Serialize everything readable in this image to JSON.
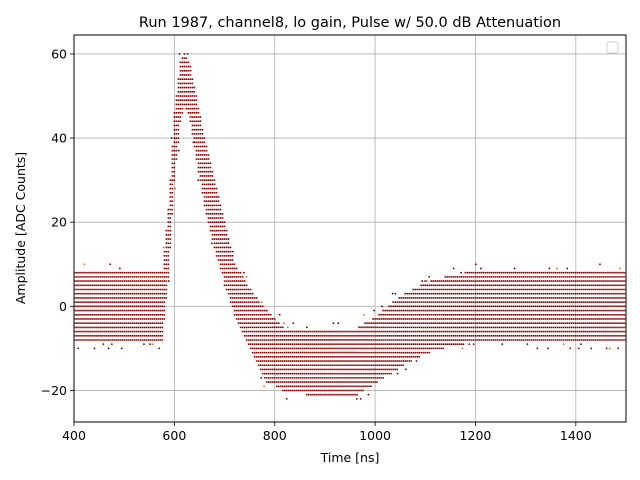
{
  "chart_data": {
    "type": "scatter",
    "title": "Run 1987, channel8, lo gain, Pulse w/ 50.0 dB Attenuation",
    "xlabel": "Time [ns]",
    "ylabel": "Amplitude [ADC Counts]",
    "xlim": [
      400,
      1500
    ],
    "ylim": [
      -27.5,
      64.5
    ],
    "x_ticks": [
      400,
      600,
      800,
      1000,
      1200,
      1400
    ],
    "y_ticks": [
      -20,
      0,
      20,
      40,
      60
    ],
    "grid": true,
    "legend": {
      "placement": "top-right",
      "entries": []
    },
    "colors": {
      "points": "#8b0000",
      "spread": "#5a0000",
      "stray": "#d2691e",
      "grid": "#b0b0b0"
    },
    "sample_spacing_ns": 4,
    "adc_step": 1,
    "series": [
      {
        "kind": "waveform-envelope",
        "points": [
          {
            "x": 400,
            "min": -8,
            "max": 8
          },
          {
            "x": 576,
            "min": -8,
            "max": 8
          },
          {
            "x": 590,
            "min": 10,
            "max": 26
          },
          {
            "x": 600,
            "min": 30,
            "max": 46
          },
          {
            "x": 612,
            "min": 44,
            "max": 58
          },
          {
            "x": 620,
            "min": 48,
            "max": 60
          },
          {
            "x": 630,
            "min": 45,
            "max": 58
          },
          {
            "x": 640,
            "min": 38,
            "max": 52
          },
          {
            "x": 660,
            "min": 24,
            "max": 40
          },
          {
            "x": 680,
            "min": 14,
            "max": 30
          },
          {
            "x": 700,
            "min": 6,
            "max": 20
          },
          {
            "x": 720,
            "min": -2,
            "max": 10
          },
          {
            "x": 750,
            "min": -10,
            "max": 4
          },
          {
            "x": 780,
            "min": -17,
            "max": -1
          },
          {
            "x": 820,
            "min": -20,
            "max": -6
          },
          {
            "x": 900,
            "min": -21,
            "max": -6
          },
          {
            "x": 960,
            "min": -21,
            "max": -6
          },
          {
            "x": 1000,
            "min": -18,
            "max": -3
          },
          {
            "x": 1040,
            "min": -15,
            "max": 1
          },
          {
            "x": 1080,
            "min": -12,
            "max": 4
          },
          {
            "x": 1120,
            "min": -10,
            "max": 6
          },
          {
            "x": 1200,
            "min": -8,
            "max": 8
          },
          {
            "x": 1500,
            "min": -8,
            "max": 8
          }
        ]
      }
    ]
  }
}
